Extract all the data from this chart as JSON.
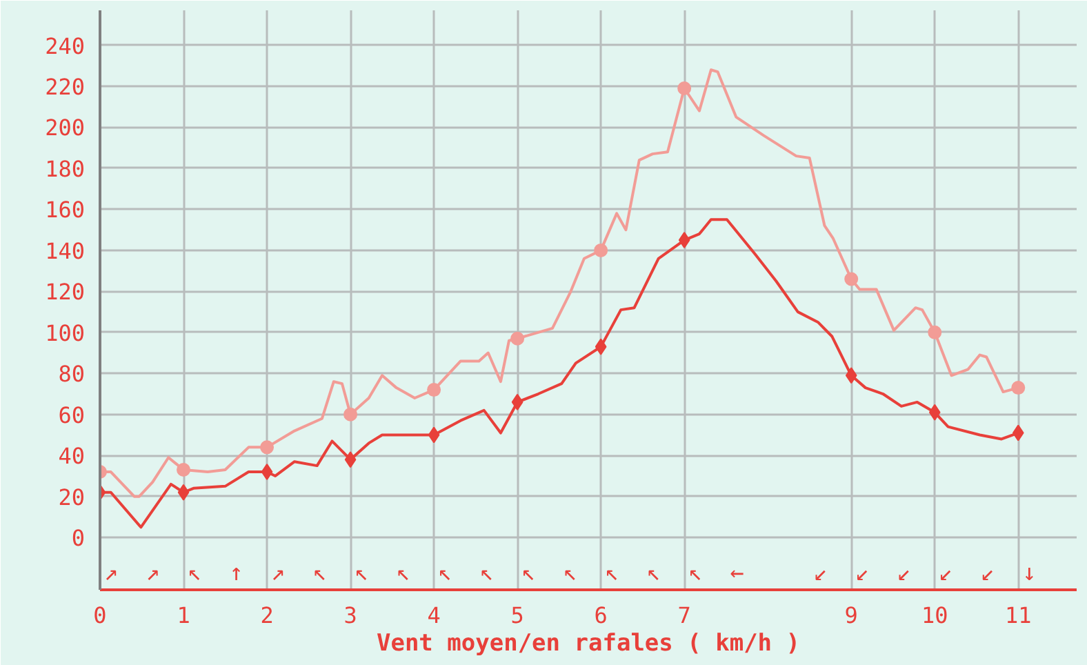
{
  "chart_data": {
    "type": "line",
    "xlabel": "Vent moyen/en rafales ( km/h )",
    "xlim": [
      0,
      11.7
    ],
    "ylim": [
      -25.5,
      257
    ],
    "xticks": [
      0,
      1,
      2,
      3,
      4,
      5,
      6,
      7,
      9,
      10,
      11
    ],
    "yticks": [
      0,
      20,
      40,
      60,
      80,
      100,
      120,
      140,
      160,
      180,
      200,
      220,
      240
    ],
    "grid": true,
    "series": [
      {
        "color": "#f29c96",
        "line_style": "solid",
        "x": [
          0,
          0.13,
          0.41,
          0.47,
          0.63,
          0.82,
          1,
          1.29,
          1.5,
          1.78,
          2,
          2.33,
          2.66,
          2.8,
          2.9,
          3,
          3.22,
          3.38,
          3.55,
          3.77,
          4,
          4.32,
          4.54,
          4.65,
          4.8,
          4.9,
          5,
          5.42,
          5.64,
          5.8,
          6,
          6.19,
          6.3,
          6.46,
          6.62,
          6.8,
          7,
          7.18,
          7.32,
          7.4,
          7.62,
          7.95,
          8.34,
          8.5,
          8.68,
          8.78,
          9,
          9.1,
          9.3,
          9.51,
          9.77,
          9.85,
          10,
          10.2,
          10.4,
          10.54,
          10.62,
          10.82,
          11
        ],
        "values": [
          32,
          32,
          20,
          20,
          27,
          39,
          33,
          32,
          33,
          44,
          44,
          52,
          58,
          76,
          75,
          60,
          68,
          79,
          73,
          68,
          72,
          86,
          86,
          90,
          76,
          96,
          97,
          102,
          120,
          136,
          140,
          158,
          150,
          184,
          187,
          188,
          219,
          208,
          228,
          227,
          205,
          196,
          186,
          185,
          152,
          146,
          126,
          121,
          121,
          101,
          112,
          111,
          100,
          79,
          82,
          89,
          88,
          71,
          73
        ]
      },
      {
        "color": "#e8403a",
        "line_style": "solid",
        "x": [
          0,
          0.13,
          0.49,
          0.85,
          1,
          1.12,
          1.5,
          1.78,
          2,
          2.1,
          2.33,
          2.6,
          2.78,
          3,
          3.22,
          3.38,
          3.77,
          4,
          4.32,
          4.6,
          4.8,
          5,
          5.25,
          5.53,
          5.7,
          6,
          6.24,
          6.4,
          6.69,
          7,
          7.18,
          7.32,
          7.51,
          7.85,
          8.1,
          8.36,
          8.6,
          8.77,
          9,
          9.17,
          9.38,
          9.6,
          9.79,
          10,
          10.16,
          10.54,
          10.8,
          11
        ],
        "values": [
          22,
          22,
          5,
          26,
          22,
          24,
          25,
          32,
          32,
          30,
          37,
          35,
          47,
          38,
          46,
          50,
          50,
          50,
          57,
          62,
          51,
          66,
          70,
          75,
          85,
          93,
          111,
          112,
          136,
          145,
          148,
          155,
          155,
          138,
          125,
          110,
          105,
          98,
          79,
          73,
          70,
          64,
          66,
          61,
          54,
          50,
          48,
          51
        ]
      },
      {
        "type": "scatter",
        "color": "#f29c96",
        "marker": "circle",
        "x": [
          0,
          1,
          2,
          3,
          4,
          5,
          6,
          7,
          9,
          10,
          11
        ],
        "values": [
          32,
          33,
          44,
          60,
          72,
          97,
          140,
          219,
          126,
          100,
          73
        ]
      },
      {
        "type": "scatter",
        "color": "#e8403a",
        "marker": "diamond",
        "x": [
          0,
          1,
          2,
          3,
          4,
          5,
          6,
          7,
          9,
          10,
          11
        ],
        "values": [
          22,
          22,
          32,
          38,
          50,
          66,
          93,
          145,
          79,
          61,
          51
        ]
      }
    ],
    "annotations": [
      "↗  ↗  ↖  ↑  ↗  ↖  ↖  ↖  ↖  ↖  ↖  ↖  ↖  ↖  ↖  ←     ↙  ↙  ↙  ↙  ↙  ↓"
    ]
  }
}
